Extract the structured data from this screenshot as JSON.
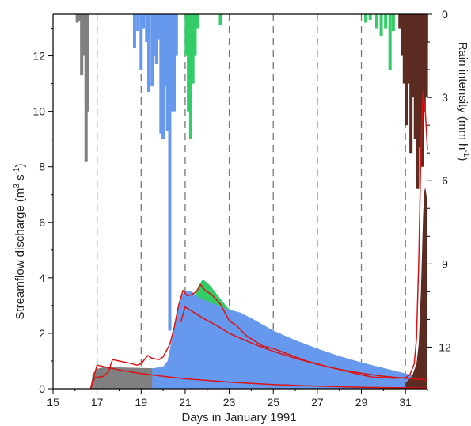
{
  "chart_data": {
    "type": "area",
    "xlabel": "Days in January 1991",
    "ylabel_main": "Streamflow discharge (m",
    "ylabel_sup1": "3",
    "ylabel_mid": " s",
    "ylabel_sup2": "-1",
    "ylabel_end": ")",
    "rain_label_main": "Rain intensity (mm h",
    "rain_label_sup": "-1",
    "rain_label_end": ")",
    "xlim": [
      15,
      32
    ],
    "ylim": [
      0,
      13.5
    ],
    "rain_lim": [
      0,
      13.5
    ],
    "x_ticks": [
      "15",
      "17",
      "19",
      "21",
      "23",
      "25",
      "27",
      "29",
      "31"
    ],
    "y_ticks": [
      "0",
      "2",
      "4",
      "6",
      "8",
      "10",
      "12"
    ],
    "rain_ticks": [
      "0",
      "3",
      "6",
      "9",
      "12"
    ],
    "event_dividers": [
      17,
      19,
      21,
      23,
      25,
      27,
      29,
      31
    ],
    "colors": {
      "event_gray": "#808080",
      "event_blue": "#6699ee",
      "event_green": "#33cc66",
      "event_brown": "#5c2b22",
      "model_line": "#dd1111",
      "axis": "#000000",
      "divider": "#777777"
    },
    "discharge_areas": [
      {
        "event": "gray",
        "color": "#808080",
        "points": [
          [
            16.7,
            0
          ],
          [
            16.8,
            0.55
          ],
          [
            17.0,
            0.72
          ],
          [
            17.3,
            0.78
          ],
          [
            17.6,
            0.78
          ],
          [
            18.0,
            0.77
          ],
          [
            18.5,
            0.76
          ],
          [
            19.0,
            0.75
          ],
          [
            19.5,
            0.74
          ],
          [
            20.0,
            0.73
          ],
          [
            21.0,
            0.7
          ],
          [
            22.0,
            0.66
          ],
          [
            23.0,
            0.6
          ],
          [
            25.0,
            0.48
          ],
          [
            27.0,
            0.36
          ],
          [
            29.0,
            0.25
          ],
          [
            31.0,
            0.16
          ],
          [
            32.0,
            0.12
          ],
          [
            32.0,
            0
          ]
        ]
      },
      {
        "event": "green",
        "color": "#33cc66",
        "points": [
          [
            21.3,
            3.1
          ],
          [
            21.6,
            3.7
          ],
          [
            21.8,
            3.95
          ],
          [
            22.1,
            3.75
          ],
          [
            22.5,
            3.35
          ],
          [
            22.9,
            2.95
          ],
          [
            23.2,
            2.75
          ],
          [
            23.6,
            2.6
          ],
          [
            22.0,
            2.6
          ],
          [
            21.3,
            2.6
          ]
        ]
      },
      {
        "event": "blue",
        "color": "#6699ee",
        "points": [
          [
            19.5,
            0.73
          ],
          [
            20.0,
            0.8
          ],
          [
            20.2,
            1.0
          ],
          [
            20.4,
            1.8
          ],
          [
            20.6,
            2.6
          ],
          [
            20.8,
            3.3
          ],
          [
            21.0,
            3.55
          ],
          [
            21.3,
            3.5
          ],
          [
            21.6,
            3.3
          ],
          [
            22.0,
            3.15
          ],
          [
            22.5,
            3.0
          ],
          [
            23.0,
            2.85
          ],
          [
            23.5,
            2.75
          ],
          [
            24.0,
            2.55
          ],
          [
            25.0,
            2.1
          ],
          [
            26.0,
            1.75
          ],
          [
            27.0,
            1.45
          ],
          [
            28.0,
            1.18
          ],
          [
            29.0,
            0.95
          ],
          [
            30.0,
            0.75
          ],
          [
            31.0,
            0.55
          ],
          [
            31.3,
            0.5
          ],
          [
            31.3,
            0
          ],
          [
            19.5,
            0
          ]
        ]
      },
      {
        "event": "brown",
        "color": "#5c2b22",
        "points": [
          [
            31.0,
            0.2
          ],
          [
            31.3,
            0.45
          ],
          [
            31.5,
            0.9
          ],
          [
            31.6,
            1.6
          ],
          [
            31.7,
            3.5
          ],
          [
            31.8,
            6.2
          ],
          [
            31.85,
            7.1
          ],
          [
            31.9,
            7.25
          ],
          [
            31.95,
            7.0
          ],
          [
            32.0,
            6.6
          ],
          [
            32.0,
            0
          ],
          [
            31.0,
            0
          ]
        ]
      }
    ],
    "model_lines": [
      {
        "name": "",
        "points": [
          [
            16.7,
            0
          ],
          [
            16.9,
            0.4
          ],
          [
            17.3,
            0.45
          ],
          [
            17.5,
            0.6
          ],
          [
            17.7,
            1.05
          ],
          [
            18.0,
            1.0
          ],
          [
            18.5,
            0.92
          ],
          [
            18.8,
            0.85
          ],
          [
            19.0,
            0.9
          ],
          [
            19.3,
            1.2
          ],
          [
            19.5,
            1.1
          ],
          [
            19.8,
            1.05
          ],
          [
            20.0,
            1.15
          ],
          [
            20.3,
            1.6
          ],
          [
            20.5,
            2.2
          ],
          [
            20.7,
            3.0
          ],
          [
            20.9,
            3.55
          ],
          [
            21.1,
            3.35
          ],
          [
            21.3,
            3.4
          ],
          [
            21.5,
            3.5
          ],
          [
            21.7,
            3.75
          ],
          [
            21.9,
            3.55
          ],
          [
            22.2,
            3.4
          ],
          [
            22.6,
            3.05
          ],
          [
            23.0,
            2.45
          ],
          [
            23.3,
            2.3
          ],
          [
            23.8,
            1.9
          ],
          [
            24.5,
            1.55
          ],
          [
            25.0,
            1.45
          ],
          [
            25.5,
            1.3
          ],
          [
            26.0,
            1.15
          ],
          [
            26.5,
            1.0
          ],
          [
            27.0,
            0.9
          ],
          [
            27.5,
            0.78
          ],
          [
            28.0,
            0.7
          ],
          [
            28.5,
            0.6
          ],
          [
            29.0,
            0.5
          ],
          [
            29.5,
            0.42
          ],
          [
            30.0,
            0.4
          ],
          [
            30.5,
            0.38
          ],
          [
            31.0,
            0.4
          ],
          [
            31.2,
            0.5
          ],
          [
            31.4,
            0.9
          ],
          [
            31.5,
            1.8
          ],
          [
            31.6,
            4.5
          ],
          [
            31.7,
            8.5
          ],
          [
            31.8,
            10.7
          ],
          [
            31.9,
            10.0
          ],
          [
            32.0,
            8.6
          ]
        ]
      },
      {
        "name": "",
        "points": [
          [
            20.8,
            2.4
          ],
          [
            21.0,
            2.95
          ],
          [
            21.3,
            2.8
          ],
          [
            21.8,
            2.55
          ],
          [
            22.5,
            2.25
          ],
          [
            23.0,
            2.0
          ],
          [
            24.0,
            1.65
          ],
          [
            25.0,
            1.35
          ],
          [
            26.0,
            1.1
          ],
          [
            27.0,
            0.88
          ],
          [
            28.0,
            0.7
          ],
          [
            29.0,
            0.56
          ],
          [
            30.0,
            0.45
          ],
          [
            31.0,
            0.38
          ],
          [
            32.0,
            0.32
          ]
        ]
      },
      {
        "name": "",
        "points": [
          [
            16.7,
            0.0
          ],
          [
            17.0,
            0.85
          ],
          [
            17.3,
            0.8
          ],
          [
            18.0,
            0.68
          ],
          [
            19.0,
            0.55
          ],
          [
            20.0,
            0.45
          ],
          [
            21.0,
            0.36
          ],
          [
            22.0,
            0.3
          ],
          [
            23.0,
            0.24
          ],
          [
            24.0,
            0.19
          ],
          [
            25.0,
            0.15
          ],
          [
            26.0,
            0.12
          ],
          [
            27.0,
            0.09
          ],
          [
            28.0,
            0.07
          ],
          [
            29.0,
            0.05
          ],
          [
            30.0,
            0.04
          ],
          [
            31.0,
            0.03
          ],
          [
            32.0,
            0.02
          ]
        ]
      }
    ],
    "rain_bars": [
      {
        "event": "gray",
        "color": "#808080",
        "bars": [
          [
            16.1,
            0.3
          ],
          [
            16.2,
            0.25
          ],
          [
            16.3,
            2.2
          ],
          [
            16.4,
            1.5
          ],
          [
            16.5,
            5.3
          ],
          [
            16.55,
            3.5
          ]
        ]
      },
      {
        "event": "blue",
        "color": "#6699ee",
        "bars": [
          [
            18.7,
            1.2
          ],
          [
            18.85,
            0.6
          ],
          [
            19.0,
            2.0
          ],
          [
            19.1,
            0.5
          ],
          [
            19.25,
            1.0
          ],
          [
            19.35,
            2.8
          ],
          [
            19.5,
            2.6
          ],
          [
            19.6,
            1.5
          ],
          [
            19.7,
            1.8
          ],
          [
            19.8,
            0.9
          ],
          [
            19.9,
            4.3
          ],
          [
            20.0,
            4.5
          ],
          [
            20.1,
            2.6
          ],
          [
            20.2,
            4.2
          ],
          [
            20.3,
            11.4
          ],
          [
            20.4,
            3.5
          ],
          [
            20.5,
            3.5
          ],
          [
            20.6,
            1.5
          ]
        ]
      },
      {
        "event": "green",
        "color": "#33cc66",
        "bars": [
          [
            21.05,
            1.5
          ],
          [
            21.15,
            3.5
          ],
          [
            21.25,
            4.5
          ],
          [
            21.35,
            2.5
          ],
          [
            21.45,
            1.5
          ],
          [
            21.55,
            0.5
          ],
          [
            22.6,
            0.4
          ],
          [
            29.2,
            0.3
          ],
          [
            29.4,
            0.2
          ],
          [
            29.7,
            0.5
          ],
          [
            29.9,
            0.8
          ],
          [
            30.1,
            0.5
          ],
          [
            30.3,
            2.0
          ],
          [
            30.45,
            0.6
          ]
        ]
      },
      {
        "event": "brown",
        "color": "#5c2b22",
        "bars": [
          [
            30.75,
            0.5
          ],
          [
            30.85,
            1.5
          ],
          [
            30.95,
            2.5
          ],
          [
            31.05,
            4.0
          ],
          [
            31.15,
            2.5
          ],
          [
            31.25,
            5.0
          ],
          [
            31.35,
            3.0
          ],
          [
            31.45,
            4.5
          ],
          [
            31.55,
            6.3
          ],
          [
            31.65,
            4.8
          ],
          [
            31.75,
            5.5
          ],
          [
            31.85,
            3.5
          ],
          [
            31.95,
            3.0
          ]
        ]
      }
    ]
  }
}
